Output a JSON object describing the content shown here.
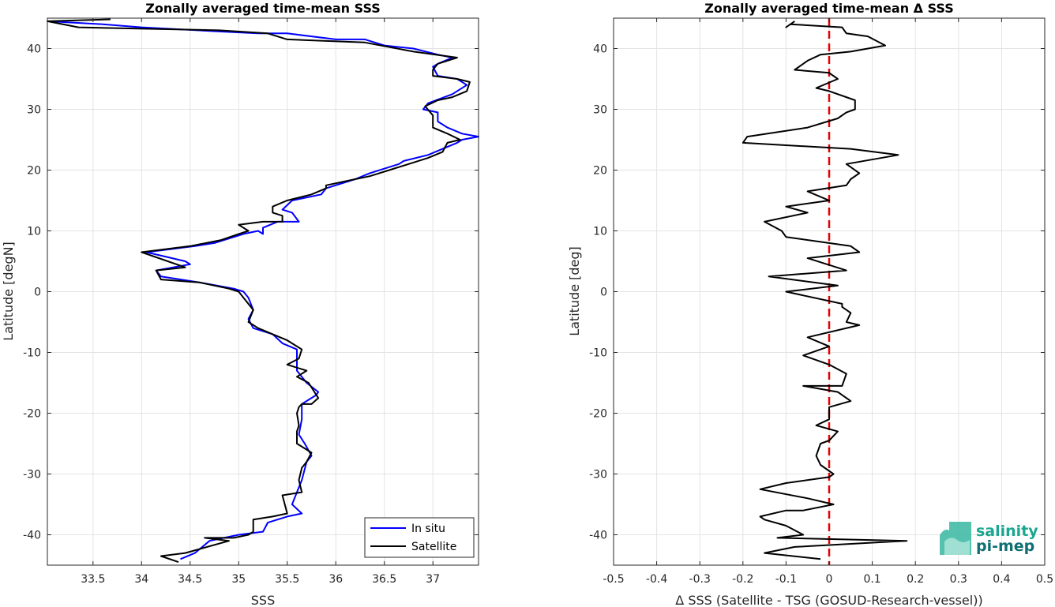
{
  "chart_data": [
    {
      "type": "line",
      "title": "Zonally averaged time-mean SSS",
      "xlabel": "SSS",
      "ylabel": "Latitude [degN]",
      "xlim": [
        33.03,
        37.47
      ],
      "ylim": [
        -45,
        45
      ],
      "xticks": [
        33.5,
        34,
        34.5,
        35,
        35.5,
        36,
        36.5,
        37
      ],
      "xtick_labels": [
        "33.5",
        "34",
        "34.5",
        "35",
        "35.5",
        "36",
        "36.5",
        "37"
      ],
      "yticks": [
        -40,
        -30,
        -20,
        -10,
        0,
        10,
        20,
        30,
        40
      ],
      "ytick_labels": [
        "-40",
        "-30",
        "-20",
        "-10",
        "0",
        "10",
        "20",
        "30",
        "40"
      ],
      "grid": true,
      "legend_position": "bottom-right",
      "series": [
        {
          "name": "In situ",
          "color": "#0000ff",
          "points": [
            [
              34.4,
              -44
            ],
            [
              34.55,
              -43
            ],
            [
              34.7,
              -41
            ],
            [
              35.0,
              -40
            ],
            [
              35.25,
              -39.5
            ],
            [
              35.3,
              -38
            ],
            [
              35.5,
              -37
            ],
            [
              35.65,
              -36.5
            ],
            [
              35.55,
              -35
            ],
            [
              35.6,
              -33
            ],
            [
              35.65,
              -31
            ],
            [
              35.7,
              -28
            ],
            [
              35.75,
              -27
            ],
            [
              35.68,
              -25
            ],
            [
              35.62,
              -23.5
            ],
            [
              35.65,
              -21
            ],
            [
              35.65,
              -18.5
            ],
            [
              35.8,
              -17
            ],
            [
              35.82,
              -16.5
            ],
            [
              35.7,
              -15
            ],
            [
              35.6,
              -13
            ],
            [
              35.6,
              -12
            ],
            [
              35.6,
              -10
            ],
            [
              35.6,
              -9.5
            ],
            [
              35.45,
              -8.5
            ],
            [
              35.35,
              -7
            ],
            [
              35.15,
              -6
            ],
            [
              35.1,
              -4.5
            ],
            [
              35.15,
              -3
            ],
            [
              35.1,
              -1
            ],
            [
              35.05,
              0
            ],
            [
              34.95,
              0.5
            ],
            [
              34.6,
              1.5
            ],
            [
              34.2,
              2.5
            ],
            [
              34.15,
              3.5
            ],
            [
              34.5,
              4.5
            ],
            [
              34.45,
              5
            ],
            [
              34.05,
              6.5
            ],
            [
              34.55,
              7.5
            ],
            [
              34.75,
              8
            ],
            [
              35.05,
              9.5
            ],
            [
              35.2,
              10
            ],
            [
              35.25,
              9.5
            ],
            [
              35.25,
              10.5
            ],
            [
              35.4,
              11.5
            ],
            [
              35.62,
              11.5
            ],
            [
              35.55,
              13
            ],
            [
              35.45,
              13.5
            ],
            [
              35.55,
              15
            ],
            [
              35.85,
              16
            ],
            [
              35.9,
              17
            ],
            [
              36.2,
              18.5
            ],
            [
              36.35,
              19.5
            ],
            [
              36.65,
              21
            ],
            [
              36.7,
              21.5
            ],
            [
              36.95,
              22.5
            ],
            [
              37.1,
              23.5
            ],
            [
              37.25,
              24.5
            ],
            [
              37.3,
              25
            ],
            [
              37.47,
              25.5
            ],
            [
              37.3,
              26
            ],
            [
              37.15,
              27
            ],
            [
              37.05,
              28
            ],
            [
              37.05,
              29.5
            ],
            [
              36.9,
              30
            ],
            [
              36.95,
              31
            ],
            [
              37.2,
              32.5
            ],
            [
              37.35,
              34
            ],
            [
              37.25,
              35
            ],
            [
              37.05,
              35.5
            ],
            [
              37.0,
              37
            ],
            [
              37.05,
              37.5
            ],
            [
              37.2,
              38.5
            ],
            [
              37.05,
              39
            ],
            [
              36.8,
              40
            ],
            [
              36.5,
              40.5
            ],
            [
              36.3,
              41.5
            ],
            [
              36.0,
              41.5
            ],
            [
              35.5,
              42.5
            ],
            [
              35.2,
              42.5
            ],
            [
              34.8,
              42.8
            ],
            [
              34.0,
              43.5
            ],
            [
              33.6,
              44
            ],
            [
              33.03,
              44.5
            ]
          ]
        },
        {
          "name": "Satellite",
          "color": "#000000",
          "points": [
            [
              34.38,
              -44.5
            ],
            [
              34.2,
              -43.5
            ],
            [
              34.45,
              -43
            ],
            [
              34.9,
              -41
            ],
            [
              34.65,
              -40.5
            ],
            [
              34.95,
              -40.5
            ],
            [
              35.1,
              -40
            ],
            [
              35.15,
              -39.5
            ],
            [
              35.15,
              -37.5
            ],
            [
              35.35,
              -37
            ],
            [
              35.5,
              -36.5
            ],
            [
              35.45,
              -33.5
            ],
            [
              35.65,
              -33
            ],
            [
              35.62,
              -31
            ],
            [
              35.65,
              -29
            ],
            [
              35.7,
              -28
            ],
            [
              35.75,
              -26.5
            ],
            [
              35.6,
              -25
            ],
            [
              35.6,
              -23
            ],
            [
              35.62,
              -22
            ],
            [
              35.6,
              -20
            ],
            [
              35.62,
              -19
            ],
            [
              35.65,
              -18.5
            ],
            [
              35.75,
              -18.5
            ],
            [
              35.82,
              -17.5
            ],
            [
              35.78,
              -16.5
            ],
            [
              35.72,
              -15
            ],
            [
              35.6,
              -14
            ],
            [
              35.7,
              -13
            ],
            [
              35.5,
              -12
            ],
            [
              35.62,
              -11
            ],
            [
              35.65,
              -9.5
            ],
            [
              35.5,
              -8
            ],
            [
              35.35,
              -7
            ],
            [
              35.2,
              -6
            ],
            [
              35.1,
              -5
            ],
            [
              35.15,
              -3
            ],
            [
              35.05,
              -1
            ],
            [
              35.0,
              0
            ],
            [
              34.9,
              0.5
            ],
            [
              34.6,
              1.5
            ],
            [
              34.2,
              2
            ],
            [
              34.15,
              3.5
            ],
            [
              34.45,
              4
            ],
            [
              34.0,
              6.5
            ],
            [
              34.5,
              7.5
            ],
            [
              34.82,
              8.5
            ],
            [
              35.0,
              9.5
            ],
            [
              35.1,
              10
            ],
            [
              35.0,
              11
            ],
            [
              35.25,
              11.5
            ],
            [
              35.45,
              11.5
            ],
            [
              35.45,
              12.5
            ],
            [
              35.35,
              13
            ],
            [
              35.35,
              14
            ],
            [
              35.5,
              15
            ],
            [
              35.75,
              16
            ],
            [
              35.9,
              17
            ],
            [
              35.9,
              17.5
            ],
            [
              36.2,
              18.5
            ],
            [
              36.35,
              19
            ],
            [
              36.55,
              20
            ],
            [
              36.75,
              21
            ],
            [
              36.95,
              22
            ],
            [
              37.1,
              23
            ],
            [
              37.15,
              24.5
            ],
            [
              37.28,
              25
            ],
            [
              37.15,
              26
            ],
            [
              37.0,
              27
            ],
            [
              37.0,
              29
            ],
            [
              36.92,
              30.5
            ],
            [
              37.05,
              31.5
            ],
            [
              37.2,
              32
            ],
            [
              37.35,
              33
            ],
            [
              37.38,
              34.5
            ],
            [
              37.25,
              35
            ],
            [
              37.0,
              35.5
            ],
            [
              37.0,
              36.5
            ],
            [
              37.05,
              37.5
            ],
            [
              37.25,
              38.5
            ],
            [
              36.8,
              39.5
            ],
            [
              36.3,
              41
            ],
            [
              35.5,
              41.5
            ],
            [
              35.3,
              42.5
            ],
            [
              34.8,
              43
            ],
            [
              33.35,
              43.5
            ],
            [
              33.03,
              44.5
            ],
            [
              33.68,
              44.8
            ]
          ]
        }
      ]
    },
    {
      "type": "line",
      "title": "Zonally averaged time-mean Δ SSS",
      "xlabel": "Δ SSS (Satellite - TSG (GOSUD-Research-vessel))",
      "ylabel": "Latitude [deg]",
      "xlim": [
        -0.5,
        0.5
      ],
      "ylim": [
        -45,
        45
      ],
      "xticks": [
        -0.5,
        -0.4,
        -0.3,
        -0.2,
        -0.1,
        0,
        0.1,
        0.2,
        0.3,
        0.4,
        0.5
      ],
      "xtick_labels": [
        "-0.5",
        "-0.4",
        "-0.3",
        "-0.2",
        "-0.1",
        "0",
        "0.1",
        "0.2",
        "0.3",
        "0.4",
        "0.5"
      ],
      "yticks": [
        -40,
        -30,
        -20,
        -10,
        0,
        10,
        20,
        30,
        40
      ],
      "ytick_labels": [
        "-40",
        "-30",
        "-20",
        "-10",
        "0",
        "10",
        "20",
        "30",
        "40"
      ],
      "grid": true,
      "reference_line": {
        "x": 0,
        "color": "#e60000",
        "style": "dashed"
      },
      "series": [
        {
          "color": "#000000",
          "points": [
            [
              -0.02,
              -44
            ],
            [
              -0.15,
              -43
            ],
            [
              -0.08,
              -42
            ],
            [
              0.18,
              -41
            ],
            [
              -0.12,
              -40.5
            ],
            [
              -0.06,
              -40
            ],
            [
              -0.1,
              -38.5
            ],
            [
              -0.15,
              -37.5
            ],
            [
              -0.16,
              -37
            ],
            [
              -0.1,
              -36
            ],
            [
              -0.06,
              -36
            ],
            [
              0.01,
              -35
            ],
            [
              -0.05,
              -34
            ],
            [
              -0.16,
              -32.5
            ],
            [
              -0.1,
              -31.5
            ],
            [
              0.0,
              -30.5
            ],
            [
              0.01,
              -30
            ],
            [
              -0.02,
              -28.5
            ],
            [
              -0.03,
              -27
            ],
            [
              -0.02,
              -25
            ],
            [
              0.0,
              -24.5
            ],
            [
              0.02,
              -23
            ],
            [
              -0.03,
              -22
            ],
            [
              0.0,
              -21
            ],
            [
              0.0,
              -19
            ],
            [
              0.05,
              -18
            ],
            [
              0.02,
              -16.5
            ],
            [
              -0.06,
              -15.5
            ],
            [
              0.03,
              -15.5
            ],
            [
              0.04,
              -13.5
            ],
            [
              0.0,
              -12
            ],
            [
              -0.06,
              -10.5
            ],
            [
              0.0,
              -9
            ],
            [
              -0.05,
              -7.5
            ],
            [
              0.07,
              -5.5
            ],
            [
              0.04,
              -5
            ],
            [
              0.05,
              -3.5
            ],
            [
              0.03,
              -2.5
            ],
            [
              0.03,
              -2
            ],
            [
              -0.1,
              0
            ],
            [
              0.02,
              1
            ],
            [
              -0.14,
              2.5
            ],
            [
              0.04,
              3.5
            ],
            [
              -0.05,
              5.5
            ],
            [
              0.07,
              6.5
            ],
            [
              0.05,
              7.5
            ],
            [
              -0.1,
              9
            ],
            [
              -0.11,
              10
            ],
            [
              -0.15,
              11.5
            ],
            [
              -0.05,
              13
            ],
            [
              -0.1,
              14
            ],
            [
              0.0,
              15
            ],
            [
              -0.05,
              16.5
            ],
            [
              0.04,
              17.5
            ],
            [
              0.05,
              18.5
            ],
            [
              0.07,
              19.5
            ],
            [
              0.05,
              20.5
            ],
            [
              0.04,
              21
            ],
            [
              0.16,
              22.5
            ],
            [
              0.05,
              23.5
            ],
            [
              -0.2,
              24.5
            ],
            [
              -0.19,
              25.5
            ],
            [
              -0.05,
              27
            ],
            [
              0.02,
              28.5
            ],
            [
              0.04,
              29.5
            ],
            [
              0.06,
              30
            ],
            [
              0.06,
              31.5
            ],
            [
              0.0,
              33
            ],
            [
              -0.03,
              33.5
            ],
            [
              0.02,
              35
            ],
            [
              0.0,
              36
            ],
            [
              -0.08,
              36.5
            ],
            [
              -0.05,
              38
            ],
            [
              -0.02,
              39
            ],
            [
              0.05,
              39.5
            ],
            [
              0.13,
              40.5
            ],
            [
              0.09,
              42
            ],
            [
              0.04,
              42.5
            ],
            [
              0.03,
              43.5
            ],
            [
              -0.09,
              44
            ],
            [
              -0.1,
              43.5
            ],
            [
              -0.08,
              44.5
            ]
          ]
        }
      ]
    }
  ],
  "logo": {
    "line1": "salinity",
    "line2": "pi-mep",
    "color1": "#1ba68f",
    "color2": "#0f6f73"
  }
}
